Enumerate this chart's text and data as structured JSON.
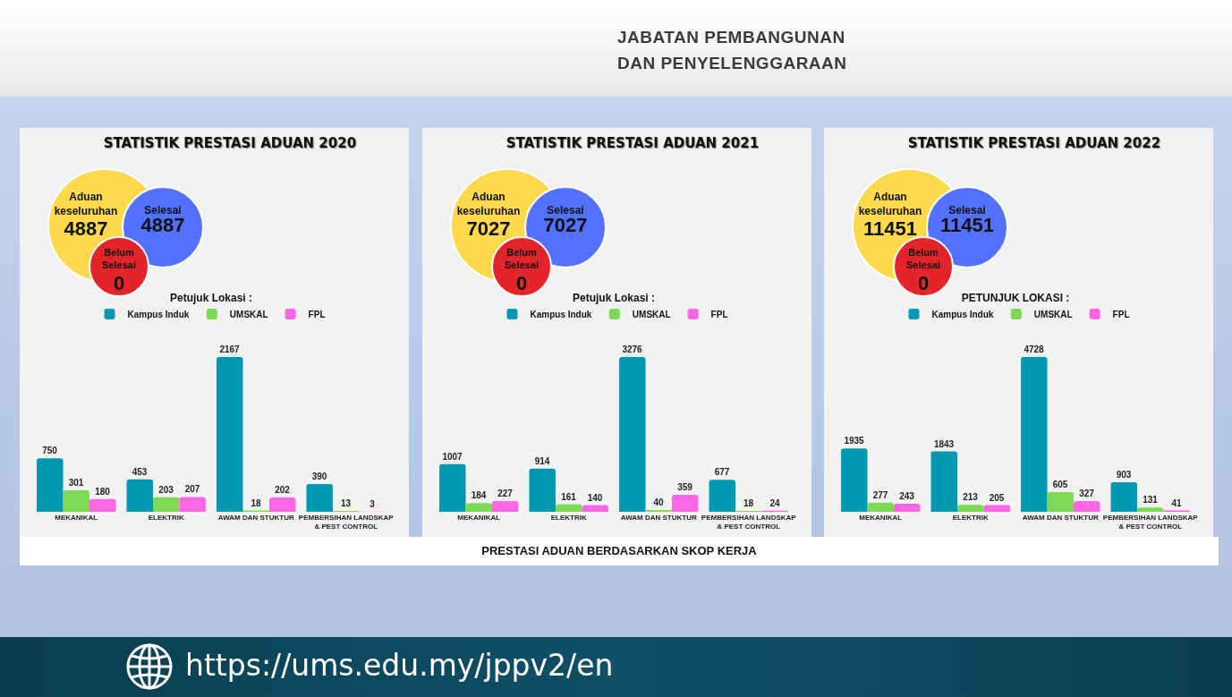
{
  "chart_data": [
    {
      "type": "other",
      "annotations": [
        "JABATAN PEMBANGUNAN DAN PENYELENGGARAAN"
      ]
    },
    {
      "type": "other",
      "title": "STATISTIK PRESTASI ADUAN 2020",
      "categories": [
        "Aduan keseluruhan",
        "Selesai",
        "Belum Selesai"
      ],
      "values": [
        4887,
        4887,
        0
      ],
      "colors": [
        "#fdd94e",
        "#5271ff",
        "#e3242b"
      ],
      "data_labels": true
    },
    {
      "type": "bar",
      "legend_title": "Petujuk Lokasi :",
      "legend": "top",
      "data_labels": true,
      "categories": [
        "MEKANIKAL",
        "ELEKTRIK",
        "AWAM DAN STUKTUR",
        "PEMBERSIHAN LANDSKAP & PEST CONTROL"
      ],
      "series": [
        {
          "name": "Kampus Induk",
          "color": "#0097b2",
          "values": [
            750,
            453,
            2167,
            390
          ]
        },
        {
          "name": "UMSKAL",
          "color": "#7ed957",
          "values": [
            301,
            203,
            18,
            13
          ]
        },
        {
          "name": "FPL",
          "color": "#ff66e6",
          "values": [
            180,
            207,
            202,
            3
          ]
        }
      ]
    },
    {
      "type": "other",
      "title": "STATISTIK PRESTASI ADUAN 2021",
      "categories": [
        "Aduan keseluruhan",
        "Selesai",
        "Belum Selesai"
      ],
      "values": [
        7027,
        7027,
        0
      ],
      "colors": [
        "#fdd94e",
        "#5271ff",
        "#e3242b"
      ],
      "data_labels": true
    },
    {
      "type": "bar",
      "legend_title": "Petujuk Lokasi :",
      "legend": "top",
      "data_labels": true,
      "categories": [
        "MEKANIKAL",
        "ELEKTRIK",
        "AWAM DAN STUKTUR",
        "PEMBERSIHAN LANDSKAP & PEST CONTROL"
      ],
      "series": [
        {
          "name": "Kampus Induk",
          "color": "#0097b2",
          "values": [
            1007,
            914,
            3276,
            677
          ]
        },
        {
          "name": "UMSKAL",
          "color": "#7ed957",
          "values": [
            184,
            161,
            40,
            18
          ]
        },
        {
          "name": "FPL",
          "color": "#ff66e6",
          "values": [
            227,
            140,
            359,
            24
          ]
        }
      ]
    },
    {
      "type": "other",
      "title": "STATISTIK PRESTASI ADUAN 2022",
      "categories": [
        "Aduan keseluruhan",
        "Selesai",
        "Belum Selesai"
      ],
      "values": [
        11451,
        11451,
        0
      ],
      "colors": [
        "#fdd94e",
        "#5271ff",
        "#e3242b"
      ],
      "data_labels": true
    },
    {
      "type": "bar",
      "legend_title": "PETUNJUK LOKASI :",
      "legend": "top",
      "data_labels": true,
      "categories": [
        "MEKANIKAL",
        "ELEKTRIK",
        "AWAM DAN STUKTUR",
        "PEMBERSIHAN LANDSKAP & PEST CONTROL"
      ],
      "series": [
        {
          "name": "Kampus Induk",
          "color": "#0097b2",
          "values": [
            1935,
            1843,
            4728,
            903
          ]
        },
        {
          "name": "UMSKAL",
          "color": "#7ed957",
          "values": [
            277,
            213,
            605,
            131
          ]
        },
        {
          "name": "FPL",
          "color": "#ff66e6",
          "values": [
            243,
            205,
            327,
            41
          ]
        }
      ]
    },
    {
      "type": "other",
      "annotations": [
        "PRESTASI ADUAN BERDASARKAN SKOP KERJA"
      ]
    },
    {
      "type": "other",
      "annotations": [
        "https://ums.edu.my/jppv2/en"
      ]
    }
  ]
}
